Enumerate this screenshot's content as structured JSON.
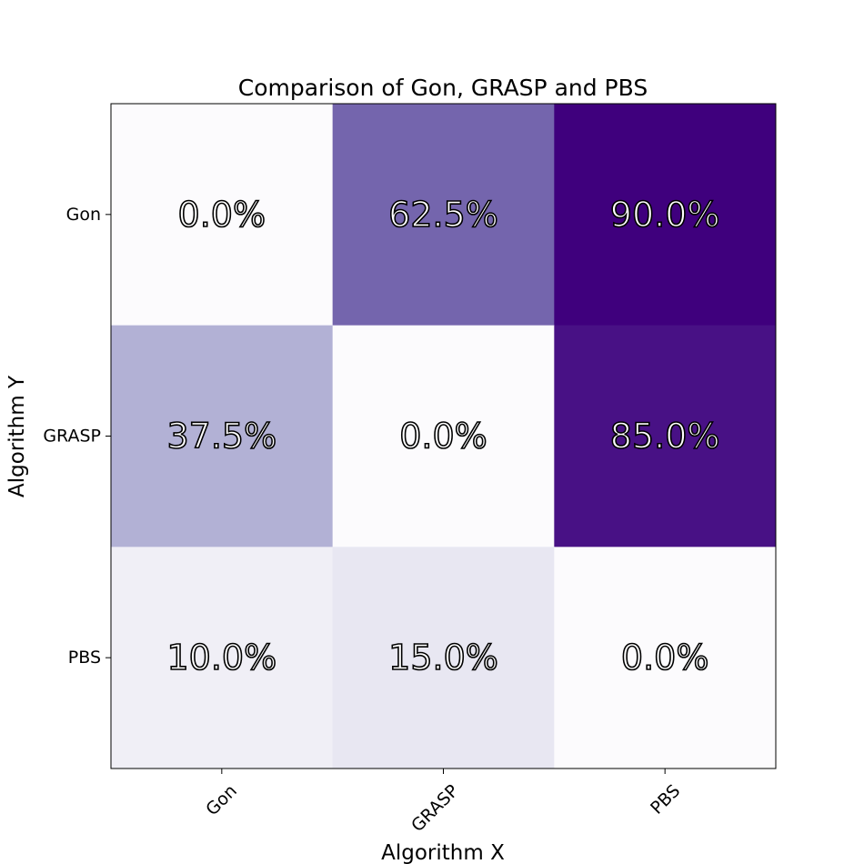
{
  "chart_data": {
    "type": "heatmap",
    "title": "Comparison of Gon, GRASP and PBS",
    "xlabel": "Algorithm X",
    "ylabel": "Algorithm Y",
    "x_categories": [
      "Gon",
      "GRASP",
      "PBS"
    ],
    "y_categories": [
      "Gon",
      "GRASP",
      "PBS"
    ],
    "values": [
      [
        0.0,
        62.5,
        90.0
      ],
      [
        37.5,
        0.0,
        85.0
      ],
      [
        10.0,
        15.0,
        0.0
      ]
    ],
    "labels": [
      [
        "0.0%",
        "62.5%",
        "90.0%"
      ],
      [
        "37.5%",
        "0.0%",
        "85.0%"
      ],
      [
        "10.0%",
        "15.0%",
        "0.0%"
      ]
    ],
    "colormap": "Purples",
    "value_range": [
      0,
      90
    ],
    "label_fill": "#ffffff",
    "label_outline": "#000000",
    "grid": false,
    "legend": "none"
  }
}
